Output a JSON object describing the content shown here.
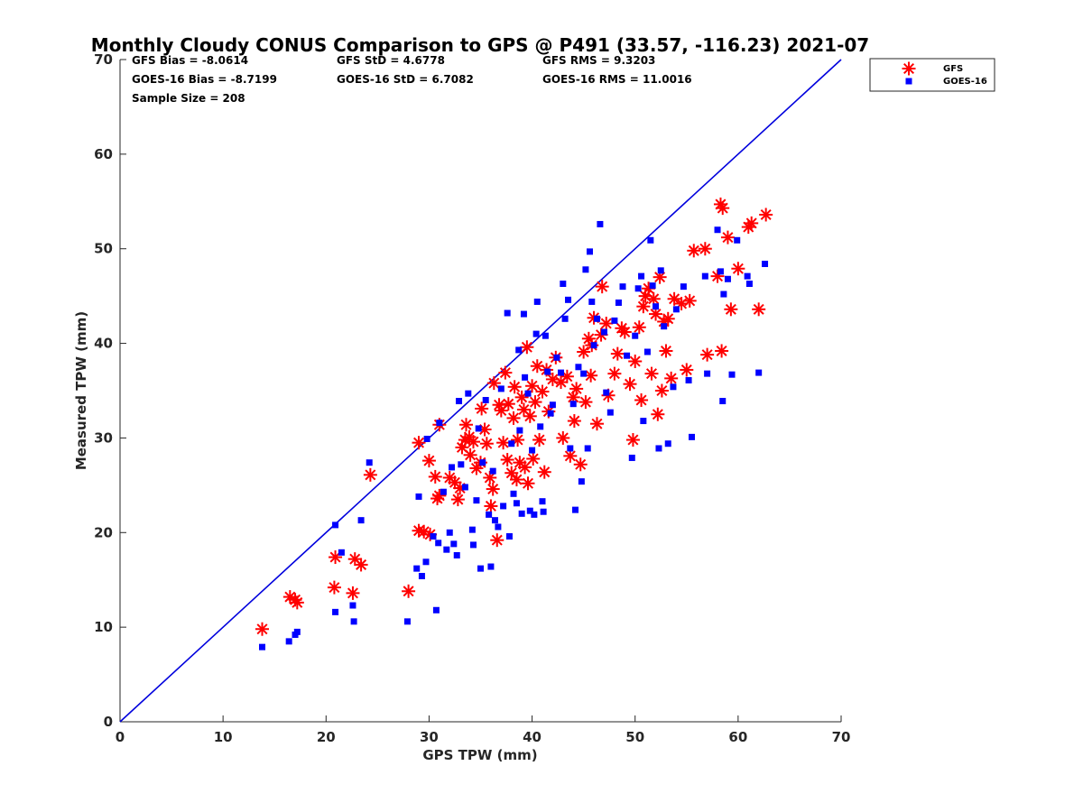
{
  "chart_data": {
    "type": "scatter",
    "title": "Monthly Cloudy CONUS Comparison to GPS @ P491 (33.57, -116.23) 2021-07",
    "xlabel": "GPS TPW (mm)",
    "ylabel": "Measured TPW (mm)",
    "xlim": [
      0,
      70
    ],
    "ylim": [
      0,
      70
    ],
    "xticks": [
      "0",
      "10",
      "20",
      "30",
      "40",
      "50",
      "60",
      "70"
    ],
    "yticks": [
      "0",
      "10",
      "20",
      "30",
      "40",
      "50",
      "60",
      "70"
    ],
    "grid": false,
    "legend_position": "top-right outside",
    "stats": {
      "gfs_bias": "GFS Bias = -8.0614",
      "gfs_std": "GFS StD = 4.6778",
      "gfs_rms": "GFS RMS = 9.3203",
      "goes_bias": "GOES-16 Bias = -8.7199",
      "goes_std": "GOES-16 StD = 6.7082",
      "goes_rms": "GOES-16 RMS = 11.0016",
      "sample_size": "Sample Size = 208"
    },
    "reference_line": {
      "x": [
        0,
        70
      ],
      "y": [
        0,
        70
      ],
      "color": "#0000dd"
    },
    "series": [
      {
        "name": "GFS",
        "marker": "asterisk",
        "color": "#ff0000",
        "points": [
          [
            13.8,
            9.8
          ],
          [
            16.5,
            13.2
          ],
          [
            17.2,
            12.6
          ],
          [
            17.0,
            12.9
          ],
          [
            20.8,
            14.2
          ],
          [
            20.9,
            17.4
          ],
          [
            22.6,
            13.6
          ],
          [
            22.8,
            17.2
          ],
          [
            23.4,
            16.6
          ],
          [
            24.3,
            26.1
          ],
          [
            28.0,
            13.8
          ],
          [
            29.0,
            20.2
          ],
          [
            29.5,
            20.1
          ],
          [
            30.1,
            19.8
          ],
          [
            29.0,
            29.5
          ],
          [
            30.0,
            27.6
          ],
          [
            30.8,
            23.6
          ],
          [
            31.0,
            23.9
          ],
          [
            30.6,
            25.9
          ],
          [
            31.0,
            31.4
          ],
          [
            32.0,
            25.8
          ],
          [
            32.5,
            25.3
          ],
          [
            32.8,
            23.5
          ],
          [
            33.0,
            24.7
          ],
          [
            33.2,
            29.0
          ],
          [
            33.5,
            29.8
          ],
          [
            33.6,
            31.4
          ],
          [
            33.9,
            30.1
          ],
          [
            34.0,
            28.2
          ],
          [
            34.3,
            29.6
          ],
          [
            34.6,
            26.8
          ],
          [
            35.0,
            27.4
          ],
          [
            35.1,
            33.1
          ],
          [
            35.4,
            30.9
          ],
          [
            35.6,
            29.4
          ],
          [
            35.9,
            25.8
          ],
          [
            36.0,
            22.8
          ],
          [
            36.2,
            24.6
          ],
          [
            36.3,
            35.8
          ],
          [
            36.6,
            19.2
          ],
          [
            36.8,
            33.5
          ],
          [
            37.0,
            32.9
          ],
          [
            37.2,
            29.5
          ],
          [
            37.4,
            36.9
          ],
          [
            37.6,
            27.7
          ],
          [
            37.7,
            33.6
          ],
          [
            38.0,
            26.3
          ],
          [
            38.2,
            32.1
          ],
          [
            38.3,
            35.4
          ],
          [
            38.5,
            25.6
          ],
          [
            38.6,
            29.8
          ],
          [
            38.8,
            27.4
          ],
          [
            39.0,
            34.3
          ],
          [
            39.2,
            33.0
          ],
          [
            39.3,
            26.9
          ],
          [
            39.5,
            39.6
          ],
          [
            39.6,
            25.2
          ],
          [
            39.8,
            32.3
          ],
          [
            40.0,
            35.5
          ],
          [
            40.1,
            27.8
          ],
          [
            40.3,
            33.8
          ],
          [
            40.5,
            37.6
          ],
          [
            40.7,
            29.8
          ],
          [
            41.0,
            34.9
          ],
          [
            41.2,
            26.4
          ],
          [
            41.4,
            37.2
          ],
          [
            41.6,
            32.8
          ],
          [
            42.0,
            36.2
          ],
          [
            42.3,
            38.5
          ],
          [
            42.8,
            35.9
          ],
          [
            43.0,
            30.0
          ],
          [
            43.4,
            36.5
          ],
          [
            43.7,
            28.1
          ],
          [
            44.0,
            34.3
          ],
          [
            44.1,
            31.8
          ],
          [
            44.3,
            35.2
          ],
          [
            44.7,
            27.2
          ],
          [
            45.0,
            39.1
          ],
          [
            45.2,
            33.8
          ],
          [
            45.5,
            40.5
          ],
          [
            45.7,
            36.6
          ],
          [
            45.8,
            39.8
          ],
          [
            46.0,
            42.7
          ],
          [
            46.3,
            31.5
          ],
          [
            46.7,
            40.9
          ],
          [
            46.8,
            46.0
          ],
          [
            47.2,
            42.1
          ],
          [
            47.4,
            34.5
          ],
          [
            48.0,
            36.8
          ],
          [
            48.3,
            38.9
          ],
          [
            48.7,
            41.6
          ],
          [
            49.0,
            41.2
          ],
          [
            49.5,
            35.7
          ],
          [
            49.8,
            29.8
          ],
          [
            50.0,
            38.1
          ],
          [
            50.4,
            41.7
          ],
          [
            50.6,
            34.0
          ],
          [
            50.8,
            43.9
          ],
          [
            51.0,
            45.0
          ],
          [
            51.3,
            45.8
          ],
          [
            51.6,
            36.8
          ],
          [
            51.8,
            44.7
          ],
          [
            52.0,
            43.1
          ],
          [
            52.2,
            32.5
          ],
          [
            52.4,
            47.0
          ],
          [
            52.6,
            35.0
          ],
          [
            52.8,
            42.3
          ],
          [
            53.0,
            39.2
          ],
          [
            53.2,
            42.6
          ],
          [
            53.5,
            36.3
          ],
          [
            53.8,
            44.7
          ],
          [
            54.5,
            44.2
          ],
          [
            55.0,
            37.2
          ],
          [
            55.3,
            44.5
          ],
          [
            55.7,
            49.8
          ],
          [
            56.8,
            50.0
          ],
          [
            57.0,
            38.8
          ],
          [
            58.0,
            47.1
          ],
          [
            58.4,
            39.2
          ],
          [
            58.3,
            54.7
          ],
          [
            58.5,
            54.3
          ],
          [
            59.0,
            51.2
          ],
          [
            59.3,
            43.6
          ],
          [
            60.0,
            47.9
          ],
          [
            61.0,
            52.3
          ],
          [
            61.3,
            52.7
          ],
          [
            62.0,
            43.6
          ],
          [
            62.7,
            53.6
          ]
        ]
      },
      {
        "name": "GOES-16",
        "marker": "square",
        "color": "#0000ff",
        "points": [
          [
            13.8,
            7.9
          ],
          [
            16.4,
            8.5
          ],
          [
            17.0,
            9.2
          ],
          [
            17.2,
            9.5
          ],
          [
            20.9,
            11.6
          ],
          [
            20.9,
            20.8
          ],
          [
            21.5,
            17.9
          ],
          [
            22.6,
            12.3
          ],
          [
            22.7,
            10.6
          ],
          [
            23.4,
            21.3
          ],
          [
            24.2,
            27.4
          ],
          [
            27.9,
            10.6
          ],
          [
            28.8,
            16.2
          ],
          [
            29.0,
            23.8
          ],
          [
            29.3,
            15.4
          ],
          [
            29.7,
            16.9
          ],
          [
            29.8,
            29.9
          ],
          [
            30.4,
            19.6
          ],
          [
            30.7,
            11.8
          ],
          [
            30.9,
            18.9
          ],
          [
            31.0,
            31.6
          ],
          [
            31.4,
            24.3
          ],
          [
            31.7,
            18.2
          ],
          [
            32.0,
            20.0
          ],
          [
            32.2,
            26.9
          ],
          [
            32.4,
            18.8
          ],
          [
            32.7,
            17.6
          ],
          [
            32.9,
            33.9
          ],
          [
            33.1,
            27.2
          ],
          [
            33.5,
            24.8
          ],
          [
            33.8,
            34.7
          ],
          [
            34.2,
            20.3
          ],
          [
            34.3,
            18.7
          ],
          [
            34.6,
            23.4
          ],
          [
            34.8,
            31.0
          ],
          [
            35.0,
            16.2
          ],
          [
            35.2,
            27.4
          ],
          [
            35.5,
            34.0
          ],
          [
            35.8,
            21.9
          ],
          [
            36.0,
            16.4
          ],
          [
            36.2,
            26.5
          ],
          [
            36.4,
            21.3
          ],
          [
            36.7,
            20.6
          ],
          [
            37.0,
            35.2
          ],
          [
            37.2,
            22.8
          ],
          [
            37.6,
            43.2
          ],
          [
            37.8,
            19.6
          ],
          [
            38.0,
            29.4
          ],
          [
            38.2,
            24.1
          ],
          [
            38.5,
            23.1
          ],
          [
            38.7,
            39.3
          ],
          [
            38.8,
            30.8
          ],
          [
            39.0,
            22.0
          ],
          [
            39.2,
            43.1
          ],
          [
            39.3,
            36.4
          ],
          [
            39.6,
            34.7
          ],
          [
            39.8,
            22.3
          ],
          [
            40.0,
            28.7
          ],
          [
            40.2,
            21.9
          ],
          [
            40.4,
            41.0
          ],
          [
            40.5,
            44.4
          ],
          [
            40.8,
            31.2
          ],
          [
            41.0,
            23.3
          ],
          [
            41.1,
            22.2
          ],
          [
            41.3,
            40.8
          ],
          [
            41.5,
            37.0
          ],
          [
            41.8,
            32.6
          ],
          [
            42.0,
            33.5
          ],
          [
            42.4,
            38.5
          ],
          [
            42.8,
            36.9
          ],
          [
            43.0,
            46.3
          ],
          [
            43.2,
            42.6
          ],
          [
            43.5,
            44.6
          ],
          [
            43.7,
            28.9
          ],
          [
            44.0,
            33.6
          ],
          [
            44.2,
            22.4
          ],
          [
            44.5,
            37.5
          ],
          [
            44.8,
            25.4
          ],
          [
            45.0,
            36.8
          ],
          [
            45.2,
            47.8
          ],
          [
            45.4,
            28.9
          ],
          [
            45.6,
            49.7
          ],
          [
            45.8,
            44.4
          ],
          [
            46.0,
            39.8
          ],
          [
            46.3,
            42.6
          ],
          [
            46.6,
            52.6
          ],
          [
            47.0,
            41.2
          ],
          [
            47.2,
            34.8
          ],
          [
            47.6,
            32.7
          ],
          [
            48.0,
            42.4
          ],
          [
            48.4,
            44.3
          ],
          [
            48.8,
            46.0
          ],
          [
            49.2,
            38.7
          ],
          [
            49.7,
            27.9
          ],
          [
            50.0,
            40.8
          ],
          [
            50.3,
            45.8
          ],
          [
            50.6,
            47.1
          ],
          [
            50.8,
            31.8
          ],
          [
            51.2,
            39.1
          ],
          [
            51.5,
            50.9
          ],
          [
            51.7,
            46.1
          ],
          [
            52.0,
            43.9
          ],
          [
            52.3,
            28.9
          ],
          [
            52.5,
            47.7
          ],
          [
            52.8,
            41.8
          ],
          [
            53.2,
            29.4
          ],
          [
            53.7,
            35.4
          ],
          [
            54.0,
            43.6
          ],
          [
            54.7,
            46.0
          ],
          [
            55.2,
            36.1
          ],
          [
            55.5,
            30.1
          ],
          [
            56.8,
            47.1
          ],
          [
            57.0,
            36.8
          ],
          [
            58.0,
            52.0
          ],
          [
            58.3,
            47.6
          ],
          [
            58.5,
            33.9
          ],
          [
            58.6,
            45.2
          ],
          [
            59.0,
            46.8
          ],
          [
            59.4,
            36.7
          ],
          [
            59.9,
            50.9
          ],
          [
            60.9,
            47.1
          ],
          [
            61.1,
            46.3
          ],
          [
            62.0,
            36.9
          ],
          [
            62.6,
            48.4
          ]
        ]
      }
    ]
  }
}
